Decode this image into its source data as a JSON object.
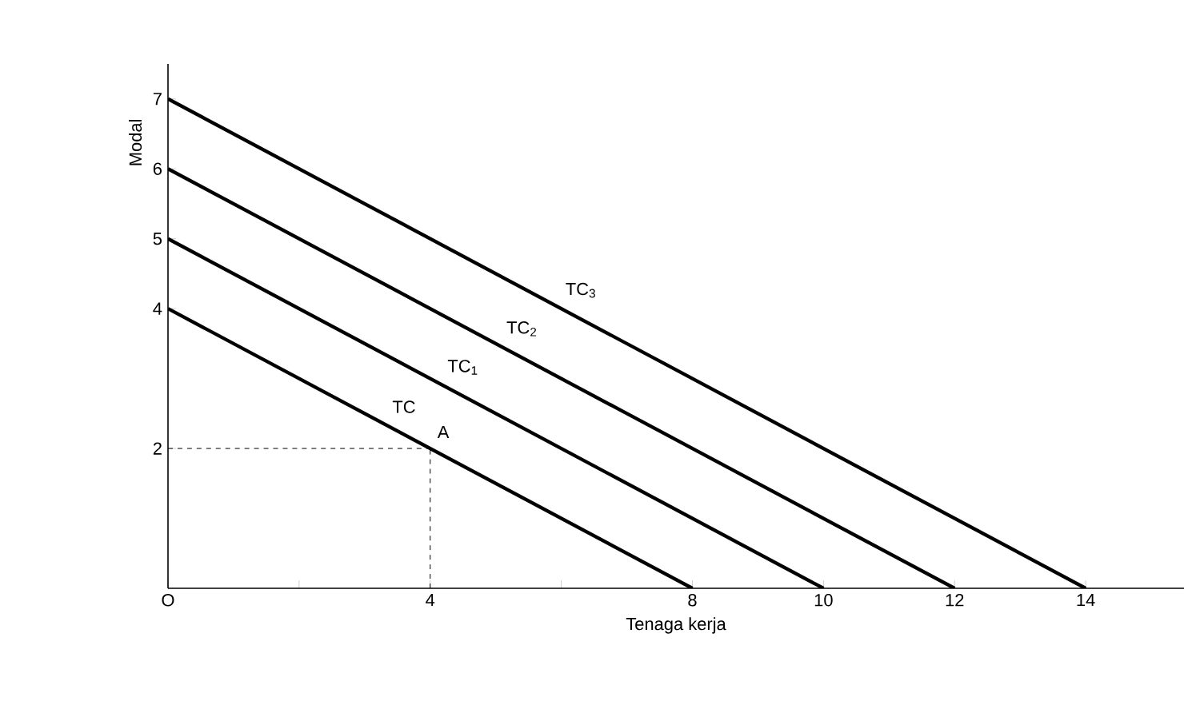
{
  "chart_data": {
    "type": "line",
    "xlabel": "Tenaga kerja",
    "ylabel": "Modal",
    "xlim": [
      0,
      15.5
    ],
    "ylim": [
      0,
      7.5
    ],
    "xticks": [
      {
        "value": 0,
        "label": "O"
      },
      {
        "value": 2,
        "label": null
      },
      4,
      {
        "value": 6,
        "label": null
      },
      8,
      10,
      12,
      14
    ],
    "yticks": [
      2,
      4,
      5,
      6,
      7
    ],
    "legend": false,
    "grid": false,
    "marker": "none",
    "series": [
      {
        "name": "TC",
        "color": "#000000",
        "x": [
          0,
          8
        ],
        "values": [
          4,
          0
        ],
        "line_style": "solid"
      },
      {
        "name": "TC$_{1}$",
        "color": "#000000",
        "x": [
          0,
          10
        ],
        "values": [
          5,
          0
        ],
        "line_style": "solid"
      },
      {
        "name": "TC$_{2}$",
        "color": "#000000",
        "x": [
          0,
          12
        ],
        "values": [
          6,
          0
        ],
        "line_style": "solid"
      },
      {
        "name": "TC$_{3}$",
        "color": "#000000",
        "x": [
          0,
          14
        ],
        "values": [
          7,
          0
        ],
        "line_style": "solid"
      },
      {
        "color": "#000000",
        "x": [
          0,
          4
        ],
        "values": [
          2,
          2
        ],
        "line_style": "dashed"
      },
      {
        "color": "#000000",
        "x": [
          4,
          4
        ],
        "values": [
          0,
          2
        ],
        "line_style": "dashed"
      }
    ],
    "annotations": [
      {
        "text": "A",
        "x": 4,
        "y": 2
      }
    ]
  }
}
